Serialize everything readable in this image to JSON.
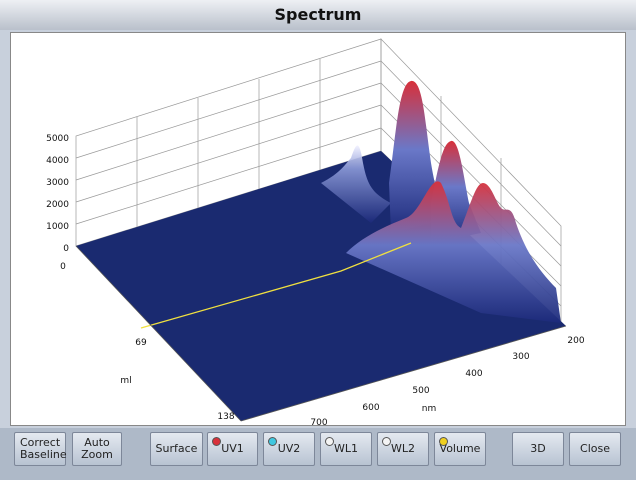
{
  "window": {
    "title": "Spectrum"
  },
  "plot": {
    "z_ticks": [
      "5000",
      "4000",
      "3000",
      "2000",
      "1000",
      "0"
    ],
    "ml_ticks": [
      "0",
      "69",
      "138"
    ],
    "ml_label": "ml",
    "nm_ticks": [
      "700",
      "600",
      "500",
      "400",
      "300",
      "200"
    ],
    "nm_label": "nm"
  },
  "buttons": [
    "Correct Baseline",
    "Auto Zoom",
    "Surface",
    "UV1",
    "UV2",
    "WL1",
    "WL2",
    "Volume",
    "3D",
    "Close"
  ]
}
